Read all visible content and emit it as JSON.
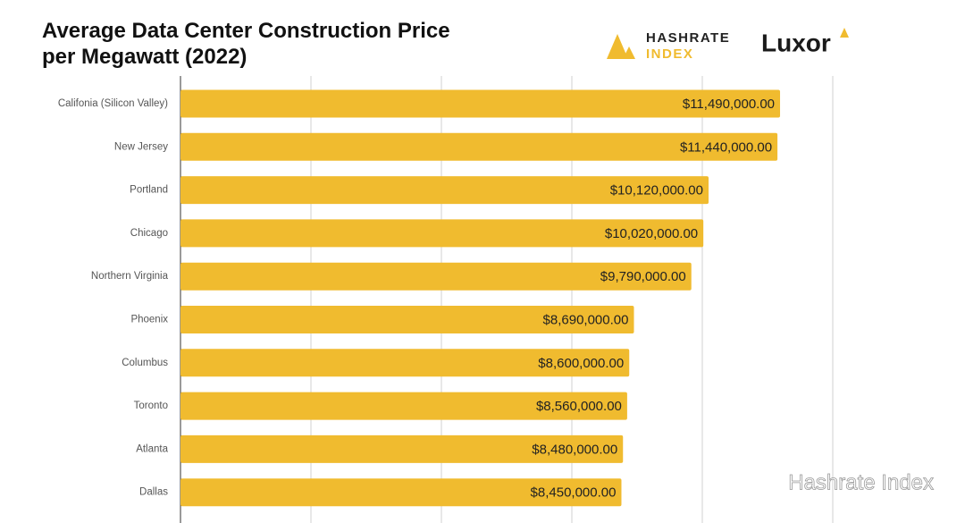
{
  "chart_data": {
    "type": "hbar",
    "title": "Average Data Center Construction Price per Megawatt (2022)",
    "categories": [
      "Califonia (Silicon Valley)",
      "New Jersey",
      "Portland",
      "Chicago",
      "Northern Virginia",
      "Phoenix",
      "Columbus",
      "Toronto",
      "Atlanta",
      "Dallas"
    ],
    "values": [
      11490000,
      11440000,
      10120000,
      10020000,
      9790000,
      8690000,
      8600000,
      8560000,
      8480000,
      8450000
    ],
    "value_labels": [
      "$11,490,000.00",
      "$11,440,000.00",
      "$10,120,000.00",
      "$10,020,000.00",
      "$9,790,000.00",
      "$8,690,000.00",
      "$8,600,000.00",
      "$8,560,000.00",
      "$8,480,000.00",
      "$8,450,000.00"
    ],
    "color": "#f0bb2f",
    "xlim": [
      0,
      12500000
    ],
    "xticks": [
      0,
      2500000,
      5000000,
      7500000,
      10000000,
      12500000
    ],
    "grid": true
  },
  "logos": {
    "hashrate_line1": "HASHRATE",
    "hashrate_line2": "INDEX",
    "luxor": "Luxor"
  },
  "watermark": "Hashrate Index"
}
